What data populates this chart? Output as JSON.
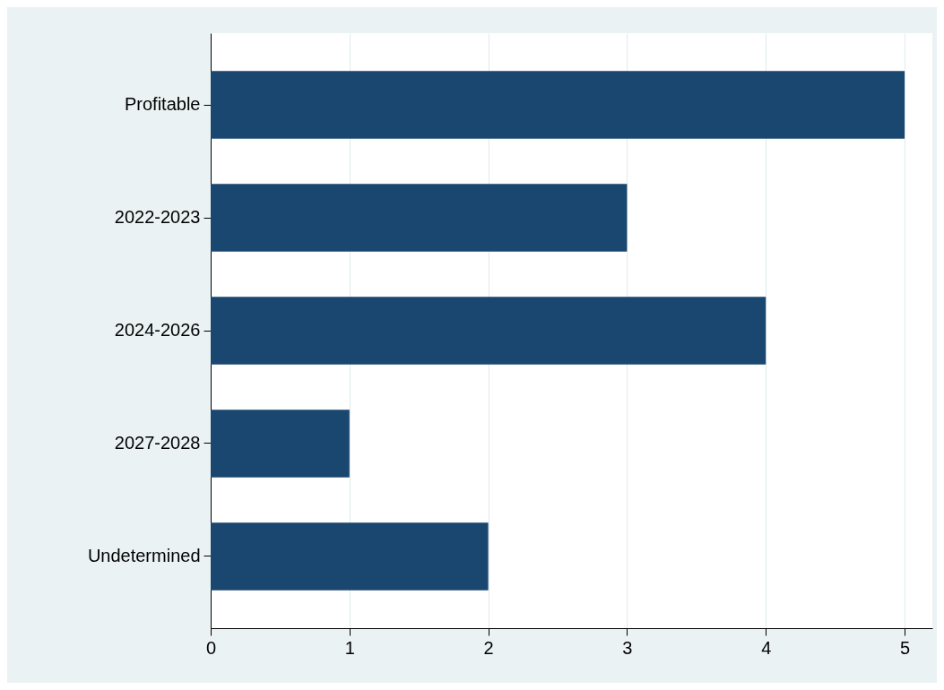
{
  "chart_data": {
    "type": "bar",
    "orientation": "horizontal",
    "categories": [
      "Profitable",
      "2022-2023",
      "2024-2026",
      "2027-2028",
      "Undetermined"
    ],
    "values": [
      5,
      3,
      4,
      1,
      2
    ],
    "color": "#1a476f",
    "xlim": [
      0,
      5.2
    ],
    "xticks": [
      0,
      1,
      2,
      3,
      4,
      5
    ],
    "grid": "x"
  }
}
